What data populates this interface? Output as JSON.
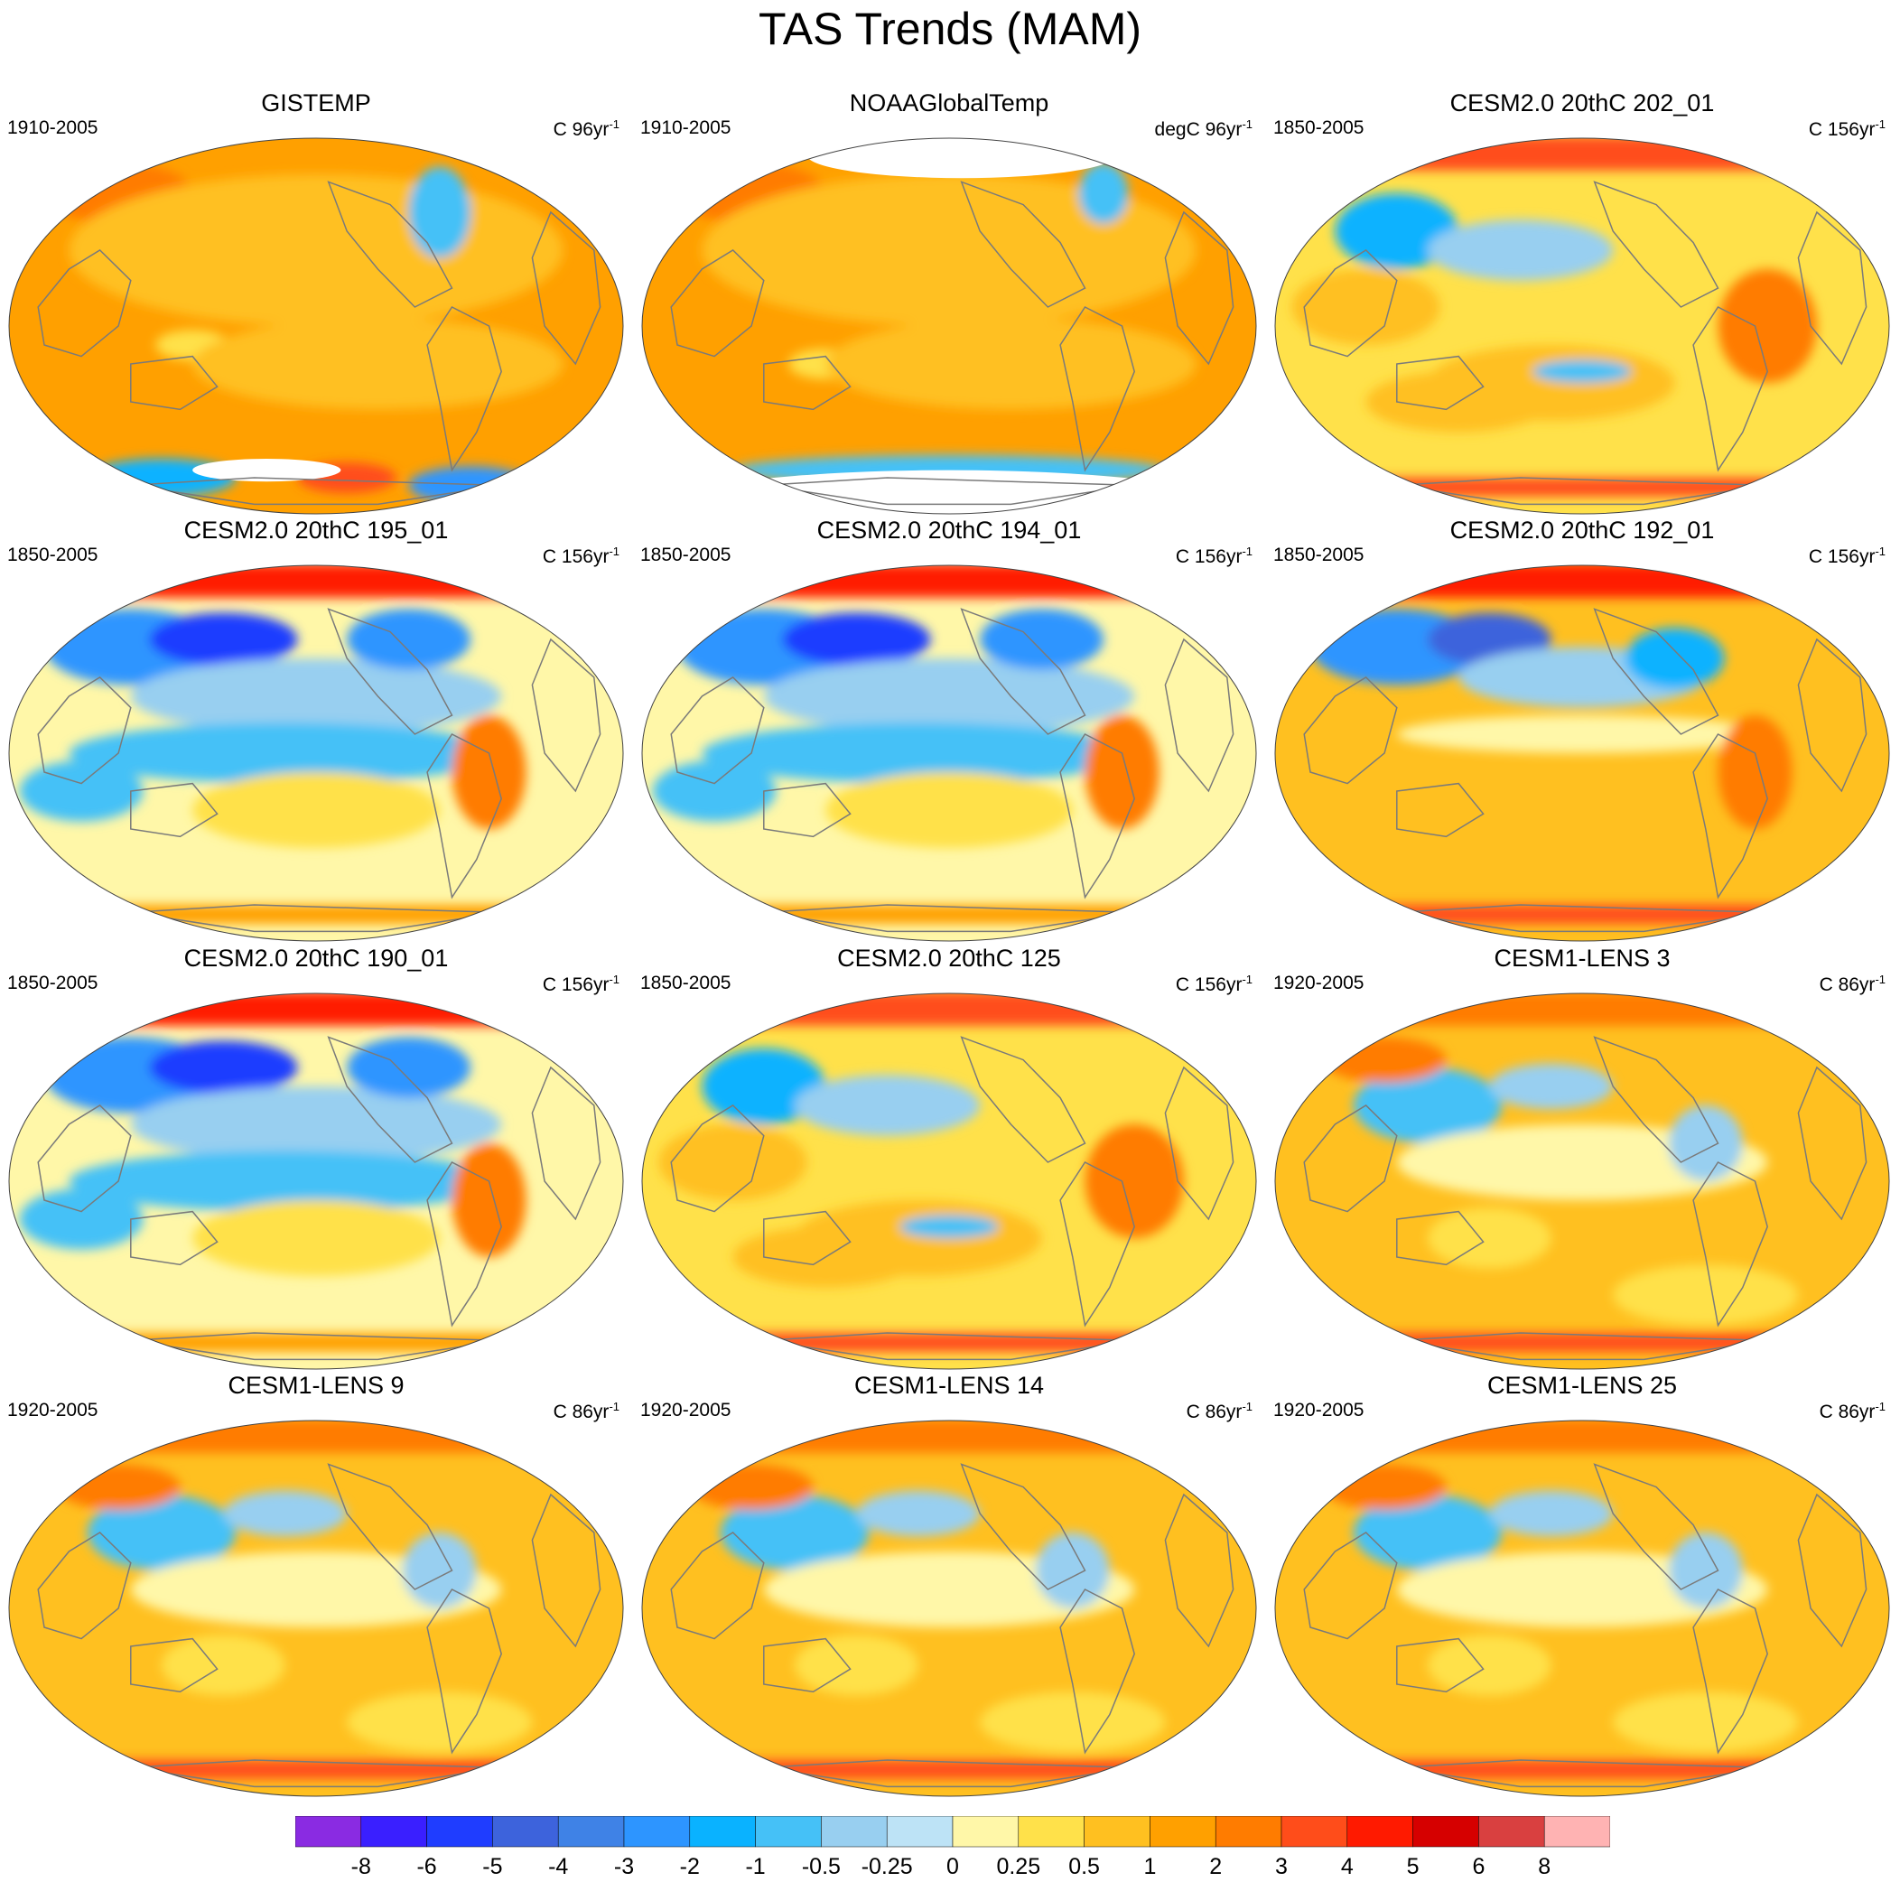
{
  "title": "TAS Trends (MAM)",
  "panels": [
    {
      "title": "GISTEMP",
      "period": "1910-2005",
      "units": "C",
      "trend": "96yr",
      "exp": "-1",
      "style": "obs_gistemp"
    },
    {
      "title": "NOAAGlobalTemp",
      "period": "1910-2005",
      "units": "degC",
      "trend": "96yr",
      "exp": "-1",
      "style": "obs_noaa"
    },
    {
      "title": "CESM2.0 20thC 202_01",
      "period": "1850-2005",
      "units": "C",
      "trend": "156yr",
      "exp": "-1",
      "style": "cesm2_warm"
    },
    {
      "title": "CESM2.0 20thC 195_01",
      "period": "1850-2005",
      "units": "C",
      "trend": "156yr",
      "exp": "-1",
      "style": "cesm2_cool"
    },
    {
      "title": "CESM2.0 20thC 194_01",
      "period": "1850-2005",
      "units": "C",
      "trend": "156yr",
      "exp": "-1",
      "style": "cesm2_cool"
    },
    {
      "title": "CESM2.0 20thC 192_01",
      "period": "1850-2005",
      "units": "C",
      "trend": "156yr",
      "exp": "-1",
      "style": "cesm2_mixed"
    },
    {
      "title": "CESM2.0 20thC 190_01",
      "period": "1850-2005",
      "units": "C",
      "trend": "156yr",
      "exp": "-1",
      "style": "cesm2_cool"
    },
    {
      "title": "CESM2.0 20thC 125",
      "period": "1850-2005",
      "units": "C",
      "trend": "156yr",
      "exp": "-1",
      "style": "cesm2_warm"
    },
    {
      "title": "CESM1-LENS 3",
      "period": "1920-2005",
      "units": "C",
      "trend": "86yr",
      "exp": "-1",
      "style": "lens"
    },
    {
      "title": "CESM1-LENS 9",
      "period": "1920-2005",
      "units": "C",
      "trend": "86yr",
      "exp": "-1",
      "style": "lens"
    },
    {
      "title": "CESM1-LENS 14",
      "period": "1920-2005",
      "units": "C",
      "trend": "86yr",
      "exp": "-1",
      "style": "lens"
    },
    {
      "title": "CESM1-LENS 25",
      "period": "1920-2005",
      "units": "C",
      "trend": "86yr",
      "exp": "-1",
      "style": "lens"
    }
  ],
  "colorbar": {
    "colors": [
      "#8a2be2",
      "#3a1fff",
      "#1f3dff",
      "#3d63dc",
      "#3f82e6",
      "#2d95ff",
      "#0ab2ff",
      "#45c1f7",
      "#98cff0",
      "#bde3f6",
      "#fff7a8",
      "#ffe14a",
      "#ffc020",
      "#ffa000",
      "#ff7c00",
      "#ff4d1a",
      "#ff1a00",
      "#d60000",
      "#d94040",
      "#ffb3b3"
    ],
    "labels": [
      "-8",
      "-6",
      "-5",
      "-4",
      "-3",
      "-2",
      "-1",
      "-0.5",
      "-0.25",
      "0",
      "0.25",
      "0.5",
      "1",
      "2",
      "3",
      "4",
      "5",
      "6",
      "8"
    ]
  }
}
